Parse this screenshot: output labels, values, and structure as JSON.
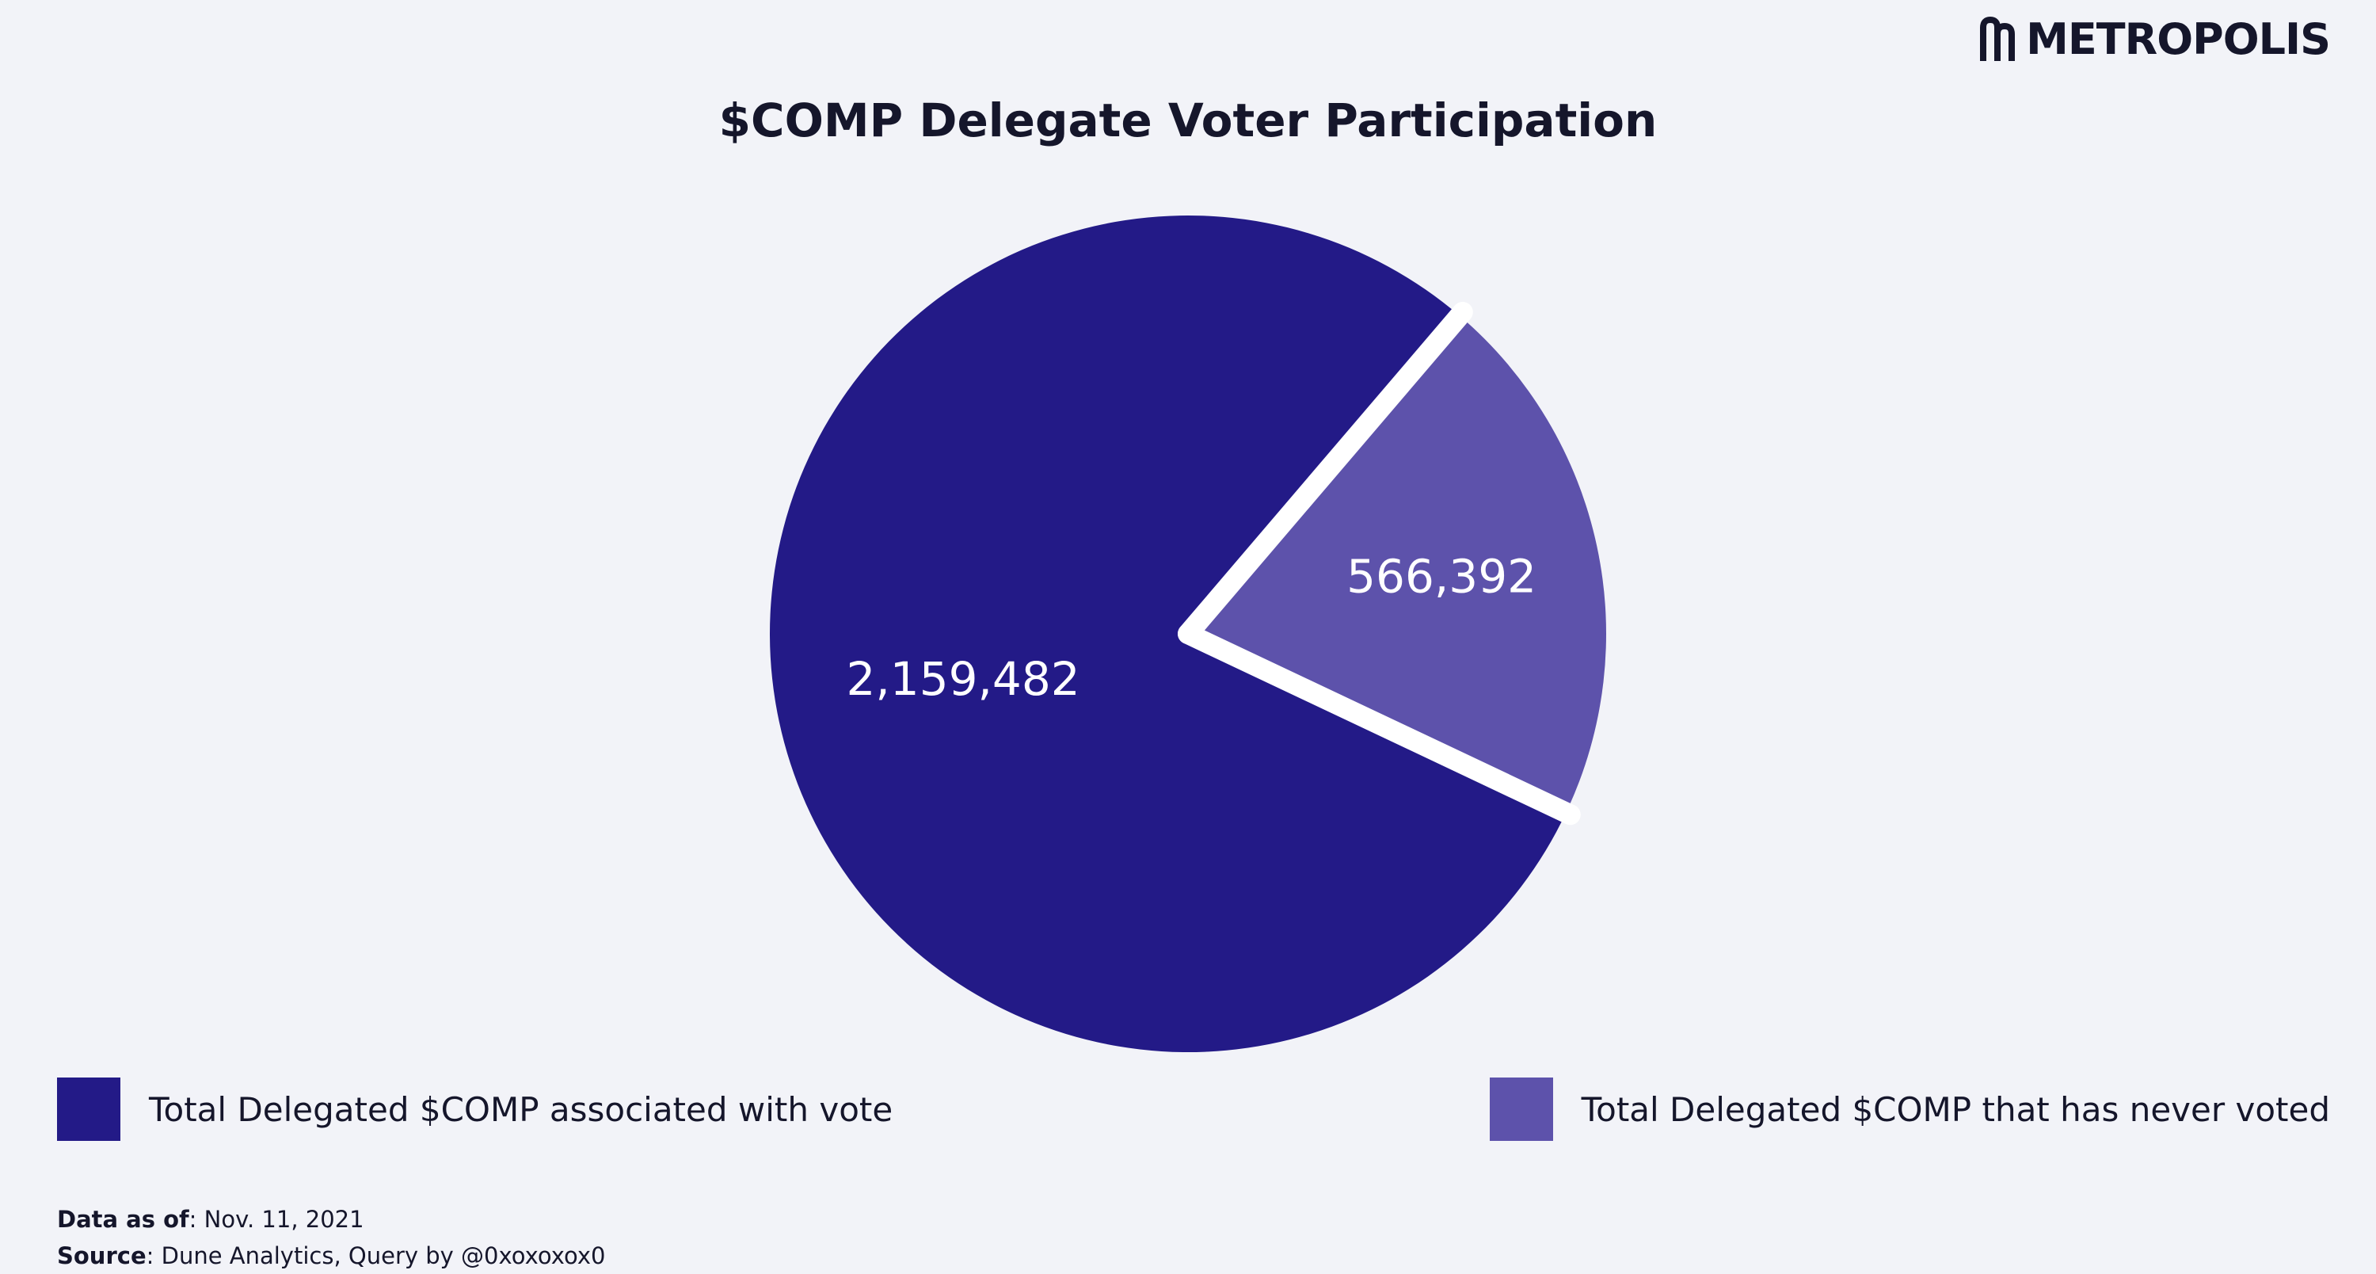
{
  "brand": {
    "name": "METROPOLIS",
    "logo_icon": "metropolis-arches-icon"
  },
  "colors": {
    "background": "#f2f3f8",
    "separator": "#ffffff",
    "label_text": "#ffffff"
  },
  "chart_data": {
    "type": "pie",
    "title": "$COMP Delegate Voter Participation",
    "slices": [
      {
        "label": "Total Delegated $COMP associated with vote",
        "value": 2159482,
        "display": "2,159,482",
        "color": "#231a87"
      },
      {
        "label": "Total Delegated $COMP that has never voted",
        "value": 566392,
        "display": "566,392",
        "color": "#5d52ab"
      }
    ],
    "legend_position": "bottom"
  },
  "footer": {
    "data_label": "Data as of",
    "data_value": ": Nov. 11, 2021",
    "source_label": "Source",
    "source_value": ":  Dune Analytics, Query by @0xoxoxox0"
  }
}
